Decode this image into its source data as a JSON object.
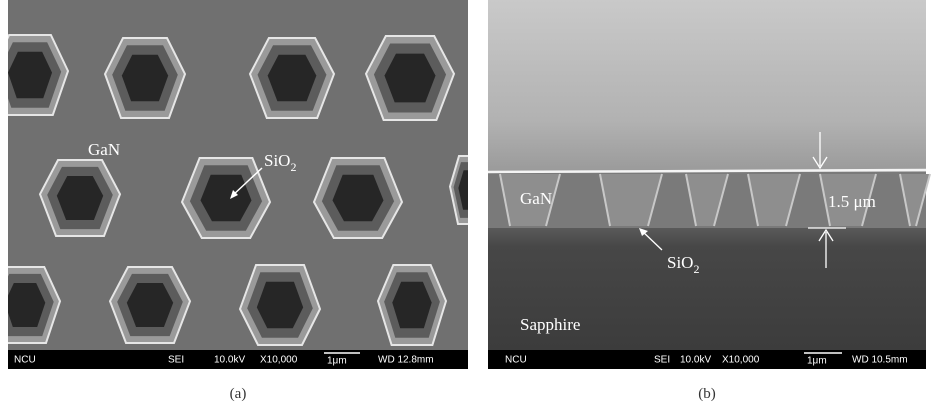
{
  "panels": [
    {
      "labels": {
        "gan": "GaN",
        "sio2": {
          "text": "SiO",
          "subscript": "2"
        }
      },
      "info_bar": {
        "left": "NCU",
        "mode": "SEI",
        "voltage": "10.0kV",
        "magnification": "X10,000",
        "scale": "1μm",
        "wd": "WD 12.8mm"
      },
      "caption": "(a)"
    },
    {
      "labels": {
        "gan": "GaN",
        "thickness": "1.5 μm",
        "sio2": {
          "text": "SiO",
          "subscript": "2"
        },
        "sapphire": "Sapphire"
      },
      "info_bar": {
        "left": "NCU",
        "mode": "SEI",
        "voltage": "10.0kV",
        "magnification": "X10,000",
        "scale": "1μm",
        "wd": "WD 10.5mm"
      },
      "caption": "(b)"
    }
  ]
}
